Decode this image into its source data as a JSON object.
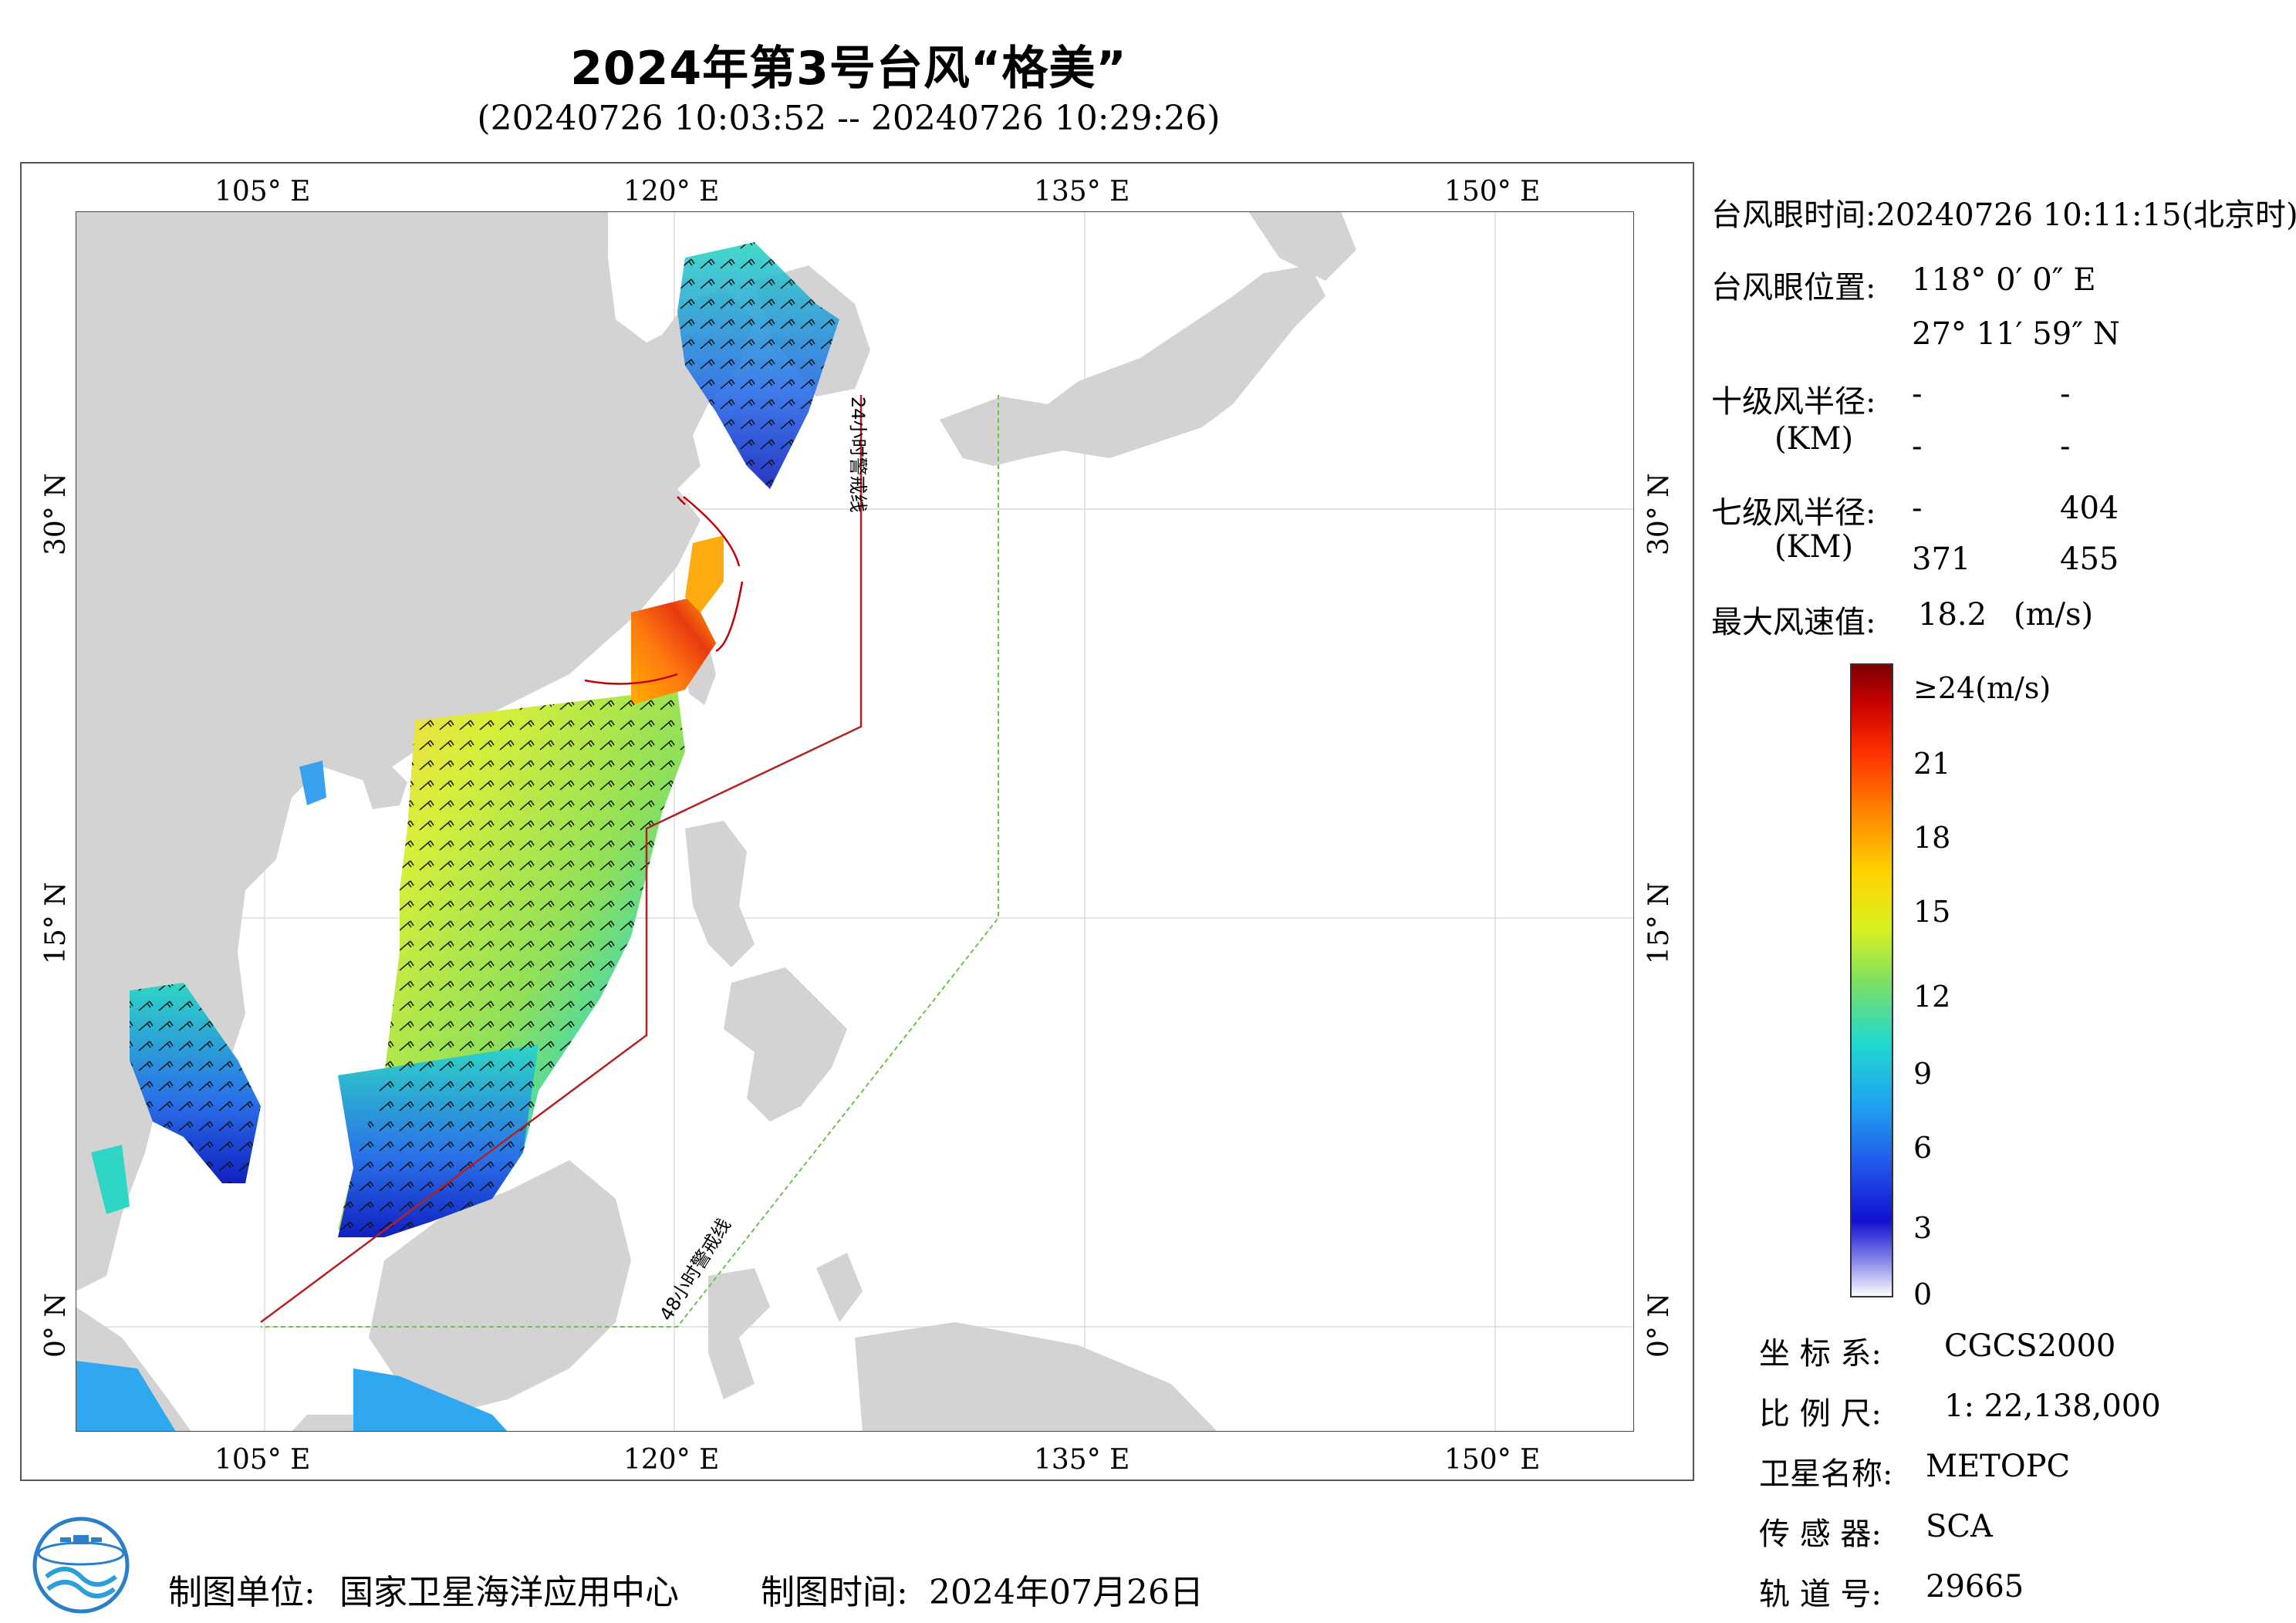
{
  "header": {
    "title": "2024年第3号台风“格美”",
    "subtitle": "(20240726 10:03:52 -- 20240726 10:29:26)"
  },
  "map": {
    "lon_labels": [
      "105° E",
      "120° E",
      "135° E",
      "150° E"
    ],
    "lat_labels": [
      "30° N",
      "15° N",
      "0° N"
    ],
    "warning_24h": "24小时警戒线",
    "warning_48h": "48小时警戒线",
    "colors": {
      "land": "#d3d3d3",
      "sea": "#ffffff",
      "warning_24h": "#b22222",
      "warning_48h": "#6cc24a"
    }
  },
  "info": {
    "eye_time": "台风眼时间:20240726 10:11:15(北京时)",
    "eye_pos_label": "台风眼位置:",
    "eye_lon": "118° 0′ 0″ E",
    "eye_lat": "27° 11′ 59″ N",
    "r10_label": "十级风半径:",
    "km_label": "(KM)",
    "r10_values": [
      "-",
      "-",
      "-",
      "-"
    ],
    "r7_label": "七级风半径:",
    "r7_values": [
      "-",
      "404",
      "371",
      "455"
    ],
    "max_wind_label": "最大风速值:",
    "max_wind_value": "18.2",
    "max_wind_unit": "(m/s)"
  },
  "colorbar": {
    "top_label": "≥24(m/s)",
    "ticks": [
      "21",
      "18",
      "15",
      "12",
      "9",
      "6",
      "3",
      "0"
    ]
  },
  "meta": {
    "crs_label": "坐 标 系:",
    "crs_value": "CGCS2000",
    "scale_label": "比 例 尺:",
    "scale_value": "1: 22,138,000",
    "sat_label": "卫星名称:",
    "sat_value": "METOPC",
    "sensor_label": "传 感 器:",
    "sensor_value": "SCA",
    "orbit_label": "轨 道 号:",
    "orbit_value": "29665"
  },
  "footer": {
    "unit_label": "制图单位:",
    "unit_value": "国家卫星海洋应用中心",
    "time_label": "制图时间:",
    "time_value": "2024年07月26日"
  }
}
